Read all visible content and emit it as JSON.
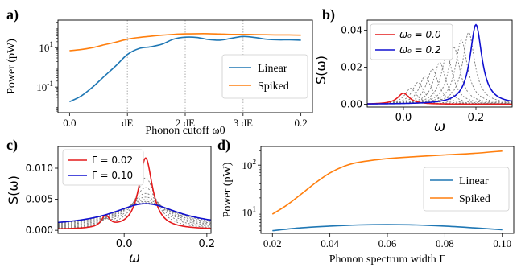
{
  "chart_data": [
    {
      "panel": "a)",
      "type": "line",
      "xlabel": "Phonon cutoff ω0",
      "ylabel": "Power (pW)",
      "yscale": "log",
      "xlim": [
        -0.01,
        0.21
      ],
      "ylim": [
        0.005,
        250
      ],
      "xticks": [
        0.0,
        0.05,
        0.1,
        0.15,
        0.2
      ],
      "xtick_labels": [
        "0.0",
        "dE",
        "2 dE",
        "3 dE",
        "0.2"
      ],
      "vlines": [
        0.05,
        0.1,
        0.15
      ],
      "ytick_labels": [
        "10^1",
        "10^-1"
      ],
      "legend": "lower right",
      "series": [
        {
          "name": "Linear",
          "color": "#1f77b4",
          "x": [
            0.0,
            0.01,
            0.02,
            0.03,
            0.04,
            0.05,
            0.06,
            0.07,
            0.08,
            0.09,
            0.1,
            0.11,
            0.12,
            0.13,
            0.14,
            0.15,
            0.16,
            0.17,
            0.18,
            0.19,
            0.2
          ],
          "y": [
            0.018,
            0.035,
            0.1,
            0.35,
            1.2,
            4.5,
            9,
            11,
            15,
            27,
            34,
            33,
            26,
            24,
            30,
            37,
            33,
            27,
            25,
            25,
            24
          ]
        },
        {
          "name": "Spiked",
          "color": "#ff7f0e",
          "x": [
            0.0,
            0.01,
            0.02,
            0.03,
            0.04,
            0.05,
            0.06,
            0.07,
            0.08,
            0.09,
            0.1,
            0.11,
            0.12,
            0.13,
            0.14,
            0.15,
            0.16,
            0.17,
            0.18,
            0.19,
            0.2
          ],
          "y": [
            7,
            8,
            10,
            14,
            19,
            27,
            33,
            38,
            43,
            47,
            50,
            51,
            51,
            49,
            47,
            47,
            46,
            45,
            44,
            44,
            43
          ]
        }
      ]
    },
    {
      "panel": "b)",
      "type": "line",
      "xlabel": "ω",
      "ylabel": "S(ω)",
      "xlim": [
        -0.1,
        0.3
      ],
      "ylim": [
        -0.0015,
        0.0455
      ],
      "xticks": [
        0.0,
        0.2
      ],
      "yticks": [
        0.0,
        0.02,
        0.04
      ],
      "ytick_labels": [
        "0.00",
        "0.02",
        "0.04"
      ],
      "legend": "upper left",
      "lorentz_gamma": 0.02,
      "intermediate_centers": [
        0.02,
        0.04,
        0.06,
        0.08,
        0.1,
        0.12,
        0.14,
        0.16,
        0.18
      ],
      "series": [
        {
          "name": "ω₀ = 0.0",
          "color": "#e41a1c",
          "center": 0.0,
          "peak": 0.006
        },
        {
          "name": "ω₀ = 0.2",
          "color": "#1010d0",
          "center": 0.2,
          "peak": 0.043
        }
      ]
    },
    {
      "panel": "c)",
      "type": "line",
      "xlabel": "ω",
      "ylabel": "S(ω)",
      "xlim": [
        -0.16,
        0.21
      ],
      "ylim": [
        -0.0005,
        0.0135
      ],
      "xticks": [
        0.0,
        0.2
      ],
      "yticks": [
        0.0,
        0.005,
        0.01
      ],
      "ytick_labels": [
        "0.000",
        "0.005",
        "0.010"
      ],
      "legend": "upper left",
      "intermediate_gammas": [
        0.03,
        0.04,
        0.05,
        0.06,
        0.07,
        0.08,
        0.09
      ],
      "series": [
        {
          "name": "Γ = 0.02",
          "color": "#e41a1c",
          "gamma": 0.02
        },
        {
          "name": "Γ = 0.10",
          "color": "#1010d0",
          "gamma": 0.1
        }
      ]
    },
    {
      "panel": "d)",
      "type": "line",
      "xlabel": "Phonon spectrum width Γ",
      "ylabel": "Power (pW)",
      "yscale": "log",
      "xlim": [
        0.016,
        0.104
      ],
      "ylim": [
        3.5,
        250
      ],
      "xticks": [
        0.02,
        0.04,
        0.06,
        0.08,
        0.1
      ],
      "xtick_labels": [
        "0.02",
        "0.04",
        "0.06",
        "0.08",
        "0.10"
      ],
      "ytick_labels": [
        "10^2",
        "10^1"
      ],
      "legend": "center right",
      "series": [
        {
          "name": "Linear",
          "color": "#1f77b4",
          "x": [
            0.02,
            0.03,
            0.04,
            0.05,
            0.06,
            0.07,
            0.08,
            0.09,
            0.1
          ],
          "y": [
            4.0,
            4.6,
            5.0,
            5.3,
            5.4,
            5.3,
            5.0,
            4.6,
            4.2
          ]
        },
        {
          "name": "Spiked",
          "color": "#ff7f0e",
          "x": [
            0.02,
            0.025,
            0.03,
            0.035,
            0.04,
            0.045,
            0.05,
            0.06,
            0.07,
            0.08,
            0.09,
            0.1
          ],
          "y": [
            9,
            14,
            24,
            42,
            68,
            95,
            115,
            138,
            152,
            165,
            178,
            200
          ]
        }
      ]
    }
  ]
}
